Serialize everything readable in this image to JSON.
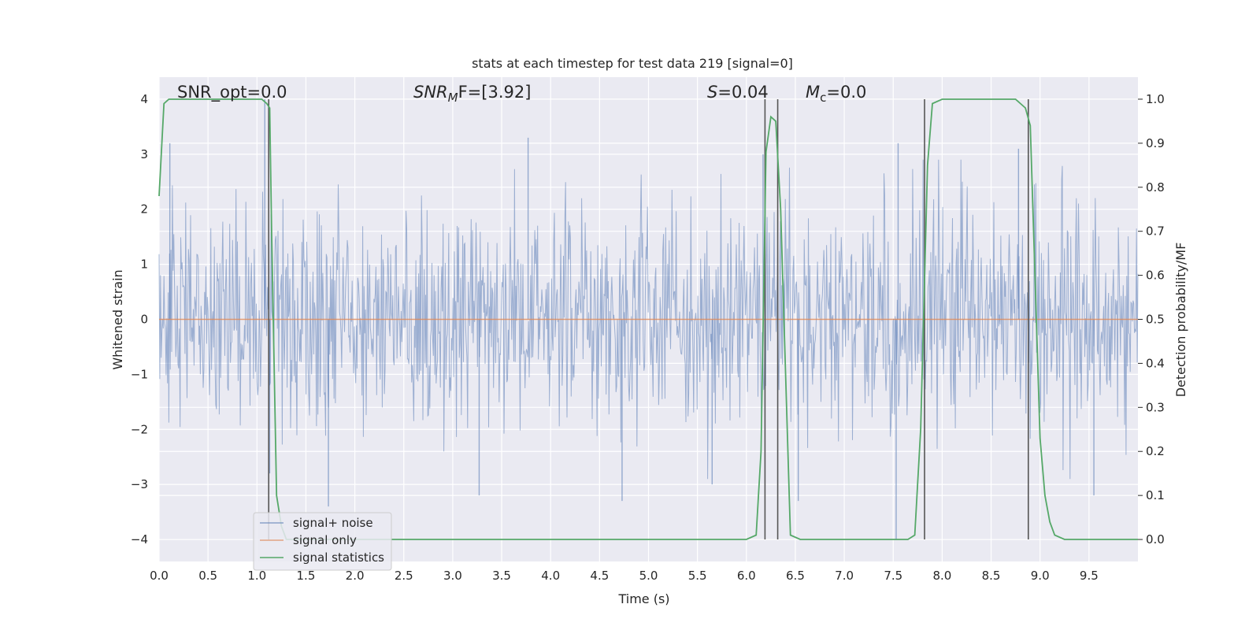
{
  "chart_data": {
    "type": "line",
    "title": "stats at each timestep for test data 219 [signal=0]",
    "xlabel": "Time (s)",
    "ylabel": "Whitened strain",
    "y2label": "Detection probability/MF",
    "xlim": [
      0,
      10
    ],
    "ylim": [
      -4.4,
      4.4
    ],
    "y2lim": [
      -0.05,
      1.05
    ],
    "xticks": [
      "0.0",
      "0.5",
      "1.0",
      "1.5",
      "2.0",
      "2.5",
      "3.0",
      "3.5",
      "4.0",
      "4.5",
      "5.0",
      "5.5",
      "6.0",
      "6.5",
      "7.0",
      "7.5",
      "8.0",
      "8.5",
      "9.0",
      "9.5"
    ],
    "yticks": [
      "4",
      "3",
      "2",
      "1",
      "0",
      "−1",
      "−2",
      "−3",
      "−4"
    ],
    "y2ticks": [
      "1.0",
      "0.9",
      "0.8",
      "0.7",
      "0.6",
      "0.5",
      "0.4",
      "0.3",
      "0.2",
      "0.1",
      "0.0"
    ],
    "grid": true,
    "legend_position": "lower-left",
    "annotations": {
      "snr_opt": "SNR_opt=0.0",
      "snr_mf_italic": "SNR",
      "snr_mf_sub": "M",
      "snr_mf_rest": "F=[3.92]",
      "s_italic": "S",
      "s_rest": "=0.04",
      "mc_italic": "M",
      "mc_sub": "c",
      "mc_rest": "=0.0"
    },
    "series": [
      {
        "name": "signal+ noise",
        "color": "#4c72b0",
        "description_kind": "noise",
        "typical_envelope": 1.6,
        "spikes": [
          {
            "x": 0.11,
            "y": 3.2
          },
          {
            "x": 1.08,
            "y": 4.0
          },
          {
            "x": 1.13,
            "y": -2.8
          },
          {
            "x": 1.73,
            "y": -3.4
          },
          {
            "x": 3.27,
            "y": -3.2
          },
          {
            "x": 3.77,
            "y": 3.3
          },
          {
            "x": 4.73,
            "y": -3.3
          },
          {
            "x": 7.53,
            "y": -4.0
          },
          {
            "x": 7.55,
            "y": 3.2
          },
          {
            "x": 8.78,
            "y": 3.1
          },
          {
            "x": 9.55,
            "y": -3.2
          },
          {
            "x": 6.17,
            "y": 3.0
          },
          {
            "x": 6.53,
            "y": -3.3
          },
          {
            "x": 5.65,
            "y": -3.0
          }
        ]
      },
      {
        "name": "signal only",
        "color": "#dd8452",
        "x": [
          0,
          10
        ],
        "y": [
          0,
          0
        ]
      },
      {
        "name": "signal statistics",
        "color": "#55a868",
        "axis": "right",
        "x": [
          0.0,
          0.05,
          0.1,
          0.2,
          0.5,
          1.0,
          1.05,
          1.1,
          1.13,
          1.15,
          1.2,
          1.25,
          1.3,
          1.5,
          2.0,
          3.0,
          4.0,
          5.0,
          5.5,
          6.0,
          6.1,
          6.15,
          6.2,
          6.25,
          6.3,
          6.35,
          6.45,
          6.55,
          7.0,
          7.5,
          7.65,
          7.72,
          7.78,
          7.85,
          7.9,
          8.0,
          8.5,
          8.75,
          8.8,
          8.85,
          8.9,
          9.0,
          9.05,
          9.1,
          9.15,
          9.25,
          9.5,
          10.0
        ],
        "y": [
          0.78,
          0.99,
          1.0,
          1.0,
          1.0,
          1.0,
          1.0,
          0.99,
          0.98,
          0.7,
          0.1,
          0.03,
          0.0,
          0.0,
          0.0,
          0.0,
          0.0,
          0.0,
          0.0,
          0.0,
          0.01,
          0.2,
          0.88,
          0.96,
          0.95,
          0.75,
          0.01,
          0.0,
          0.0,
          0.0,
          0.0,
          0.01,
          0.25,
          0.85,
          0.99,
          1.0,
          1.0,
          1.0,
          0.99,
          0.98,
          0.94,
          0.23,
          0.1,
          0.04,
          0.01,
          0.0,
          0.0,
          0.0
        ]
      }
    ],
    "vlines": {
      "color": "#555555",
      "x": [
        1.12,
        6.19,
        6.32,
        7.82,
        8.88
      ]
    }
  }
}
